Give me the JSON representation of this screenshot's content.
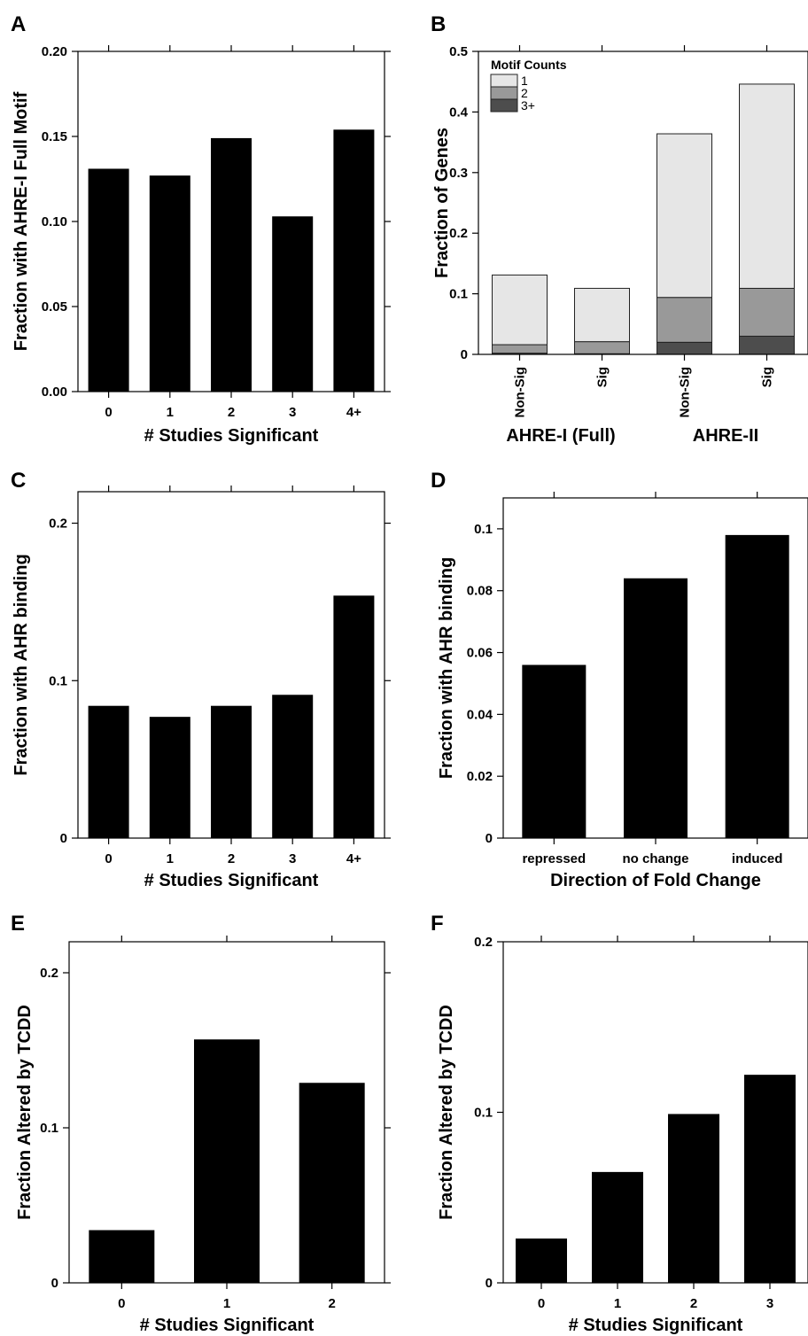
{
  "chart_data": [
    {
      "panel": "A",
      "type": "bar",
      "xlabel": "# Studies Significant",
      "ylabel": "Fraction with AHRE-I Full Motif",
      "categories": [
        "0",
        "1",
        "2",
        "3",
        "4+"
      ],
      "values": [
        0.131,
        0.127,
        0.149,
        0.103,
        0.154
      ],
      "ylim": [
        0,
        0.2
      ],
      "yticks": [
        "0.00",
        "0.05",
        "0.10",
        "0.15",
        "0.20"
      ],
      "grid": false,
      "bar_color": "#000000"
    },
    {
      "panel": "B",
      "type": "stacked_bar",
      "ylabel": "Fraction of Genes",
      "categories": [
        "Non-Sig",
        "Sig",
        "Non-Sig",
        "Sig"
      ],
      "groups": [
        {
          "label": "AHRE-I (Full)",
          "categories": [
            0,
            1
          ]
        },
        {
          "label": "AHRE-II",
          "categories": [
            2,
            3
          ]
        }
      ],
      "legend_title": "Motif Counts",
      "legend_position": "top-left",
      "series": [
        {
          "name": "3+",
          "color": "#4d4d4d",
          "values": [
            0.002,
            0.001,
            0.02,
            0.03
          ]
        },
        {
          "name": "2",
          "color": "#999999",
          "values": [
            0.014,
            0.02,
            0.074,
            0.079
          ]
        },
        {
          "name": "1",
          "color": "#e6e6e6",
          "values": [
            0.115,
            0.088,
            0.27,
            0.337
          ]
        }
      ],
      "totals": [
        0.131,
        0.109,
        0.364,
        0.446
      ],
      "ylim": [
        0,
        0.5
      ],
      "yticks": [
        "0",
        "0.1",
        "0.2",
        "0.3",
        "0.4",
        "0.5"
      ],
      "grid": false
    },
    {
      "panel": "C",
      "type": "bar",
      "xlabel": "# Studies Significant",
      "ylabel": "Fraction with AHR binding",
      "categories": [
        "0",
        "1",
        "2",
        "3",
        "4+"
      ],
      "values": [
        0.084,
        0.077,
        0.084,
        0.091,
        0.154
      ],
      "ylim": [
        0,
        0.22
      ],
      "yticks": [
        "0",
        "0.1",
        "0.2"
      ],
      "grid": false,
      "bar_color": "#000000"
    },
    {
      "panel": "D",
      "type": "bar",
      "xlabel": "Direction of Fold Change",
      "ylabel": "Fraction with AHR binding",
      "categories": [
        "repressed",
        "no change",
        "induced"
      ],
      "values": [
        0.056,
        0.084,
        0.098
      ],
      "ylim": [
        0,
        0.11
      ],
      "yticks": [
        "0",
        "0.02",
        "0.04",
        "0.06",
        "0.08",
        "0.1"
      ],
      "grid": false,
      "bar_color": "#000000"
    },
    {
      "panel": "E",
      "type": "bar",
      "xlabel": "# Studies Significant",
      "ylabel": "Fraction Altered by TCDD",
      "categories": [
        "0",
        "1",
        "2"
      ],
      "values": [
        0.034,
        0.157,
        0.129
      ],
      "ylim": [
        0,
        0.22
      ],
      "yticks": [
        "0",
        "0.1",
        "0.2"
      ],
      "grid": false,
      "bar_color": "#000000"
    },
    {
      "panel": "F",
      "type": "bar",
      "xlabel": "# Studies Significant",
      "ylabel": "Fraction Altered by TCDD",
      "categories": [
        "0",
        "1",
        "2",
        "3"
      ],
      "values": [
        0.026,
        0.065,
        0.099,
        0.122
      ],
      "ylim": [
        0,
        0.2
      ],
      "yticks": [
        "0",
        "0.1",
        "0.2"
      ],
      "grid": false,
      "bar_color": "#000000"
    }
  ]
}
